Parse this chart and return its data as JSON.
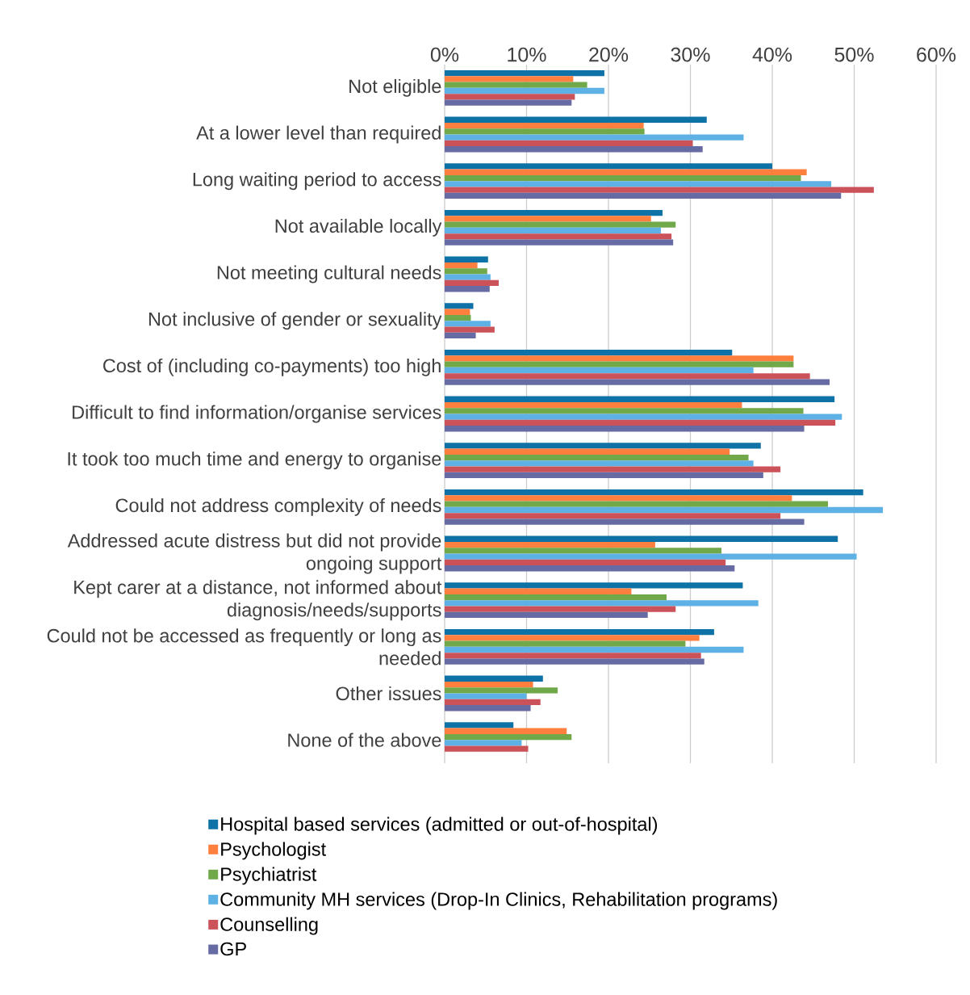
{
  "chart_data": {
    "type": "bar",
    "orientation": "horizontal",
    "categories": [
      "Not eligible",
      "At a lower level than required",
      "Long waiting period to access",
      "Not available locally",
      "Not meeting cultural needs",
      "Not inclusive of gender or sexuality",
      "Cost of (including co-payments) too high",
      "Difficult to find information/organise services",
      "It took too much time and energy to organise",
      "Could not address complexity of needs",
      "Addressed acute distress but did not provide ongoing support",
      "Kept carer at a distance, not informed about diagnosis/needs/supports",
      "Could not be accessed as frequently or long as needed",
      "Other issues",
      "None of the above"
    ],
    "series": [
      {
        "name": "Hospital based services (admitted or out-of-hospital)",
        "color": "#0f72a6",
        "values": [
          19.5,
          32.0,
          40.0,
          26.6,
          5.3,
          3.5,
          35.1,
          47.6,
          38.6,
          51.1,
          48.0,
          36.4,
          32.9,
          12.0,
          8.4
        ]
      },
      {
        "name": "Psychologist",
        "color": "#ff7f3f",
        "values": [
          15.7,
          24.3,
          44.2,
          25.2,
          4.0,
          3.1,
          42.6,
          36.3,
          34.8,
          42.4,
          25.7,
          22.8,
          31.1,
          10.8,
          14.9
        ]
      },
      {
        "name": "Psychiatrist",
        "color": "#70a84a",
        "values": [
          17.4,
          24.4,
          43.5,
          28.2,
          5.2,
          3.2,
          42.6,
          43.8,
          37.1,
          46.8,
          33.8,
          27.1,
          29.4,
          13.8,
          15.5
        ]
      },
      {
        "name": "Community MH services (Drop-In Clinics, Rehabilitation programs)",
        "color": "#5eb1e4",
        "values": [
          19.5,
          36.5,
          47.2,
          26.4,
          5.6,
          5.6,
          37.7,
          48.5,
          37.7,
          53.5,
          50.3,
          38.3,
          36.5,
          10.0,
          9.4
        ]
      },
      {
        "name": "Counselling",
        "color": "#cc525a",
        "values": [
          15.9,
          30.3,
          52.4,
          27.7,
          6.6,
          6.1,
          44.6,
          47.7,
          41.0,
          41.0,
          34.3,
          28.2,
          31.3,
          11.7,
          10.2
        ]
      },
      {
        "name": "GP",
        "color": "#676ba3",
        "values": [
          15.5,
          31.5,
          48.4,
          27.9,
          5.5,
          3.8,
          47.0,
          43.9,
          38.9,
          43.9,
          35.4,
          24.8,
          31.7,
          10.5,
          null
        ]
      }
    ],
    "xlim": [
      0,
      60
    ],
    "xticks": [
      {
        "value": 0,
        "label": "0%"
      },
      {
        "value": 10,
        "label": "10%"
      },
      {
        "value": 20,
        "label": "20%"
      },
      {
        "value": 30,
        "label": "30%"
      },
      {
        "value": 40,
        "label": "40%"
      },
      {
        "value": 50,
        "label": "50%"
      },
      {
        "value": 60,
        "label": "60%"
      }
    ],
    "grid": "x",
    "legend": "bottom"
  }
}
